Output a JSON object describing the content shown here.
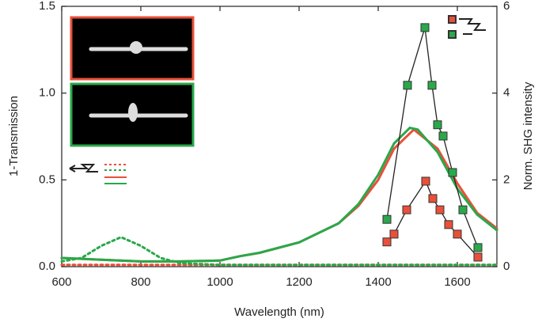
{
  "chart_data": {
    "type": "line",
    "xlabel": "Wavelength (nm)",
    "ylabel": "1-Transmission",
    "y2label": "Norm. SHG intensity",
    "xlim": [
      600,
      1700
    ],
    "xticks": [
      600,
      800,
      1000,
      1200,
      1400,
      1600
    ],
    "ylim": [
      0,
      1.5
    ],
    "yticks": [
      {
        "value": 0,
        "label": "0.0"
      },
      0.5,
      {
        "value": 1,
        "label": "1.0"
      },
      1.5
    ],
    "y2lim": [
      0,
      6
    ],
    "y2ticks": [
      0,
      2,
      4,
      6
    ],
    "series": [
      {
        "color": "#e8503a",
        "linestyle": "solid",
        "x": [
          600,
          700,
          800,
          900,
          1000,
          1050,
          1100,
          1200,
          1300,
          1350,
          1400,
          1440,
          1490,
          1550,
          1600,
          1650,
          1700
        ],
        "values": [
          0.05,
          0.04,
          0.03,
          0.03,
          0.035,
          0.06,
          0.08,
          0.14,
          0.25,
          0.35,
          0.5,
          0.68,
          0.79,
          0.68,
          0.48,
          0.31,
          0.22
        ]
      },
      {
        "color": "#2aa84a",
        "linestyle": "solid",
        "x": [
          600,
          700,
          800,
          900,
          1000,
          1050,
          1100,
          1200,
          1300,
          1350,
          1400,
          1440,
          1480,
          1500,
          1550,
          1600,
          1650,
          1700
        ],
        "values": [
          0.05,
          0.04,
          0.03,
          0.03,
          0.035,
          0.06,
          0.08,
          0.14,
          0.25,
          0.36,
          0.53,
          0.71,
          0.8,
          0.79,
          0.66,
          0.45,
          0.3,
          0.21
        ]
      },
      {
        "color": "#e8503a",
        "linestyle": "dotted",
        "x": [
          600,
          800,
          1000,
          1200,
          1400,
          1600,
          1700
        ],
        "values": [
          0.01,
          0.01,
          0.01,
          0.01,
          0.01,
          0.01,
          0.01
        ]
      },
      {
        "color": "#2aa84a",
        "linestyle": "dotted",
        "x": [
          600,
          650,
          700,
          750,
          800,
          850,
          900,
          1000,
          1200,
          1400,
          1600,
          1700
        ],
        "values": [
          0.03,
          0.05,
          0.12,
          0.17,
          0.12,
          0.05,
          0.02,
          0.01,
          0.01,
          0.01,
          0.01,
          0.01
        ]
      },
      {
        "color": "#e8503a",
        "marker": "square",
        "axis": "y2",
        "x": [
          1422,
          1440,
          1472,
          1520,
          1538,
          1556,
          1578,
          1600,
          1652
        ],
        "values": [
          0.57,
          0.75,
          1.31,
          1.97,
          1.57,
          1.31,
          0.97,
          0.75,
          0.22
        ]
      },
      {
        "color": "#2aa84a",
        "marker": "square",
        "axis": "y2",
        "x": [
          1422,
          1474,
          1518,
          1536,
          1550,
          1564,
          1588,
          1614,
          1652
        ],
        "values": [
          1.09,
          4.18,
          5.51,
          4.18,
          3.27,
          3.01,
          2.17,
          1.31,
          0.44
        ]
      }
    ]
  }
}
